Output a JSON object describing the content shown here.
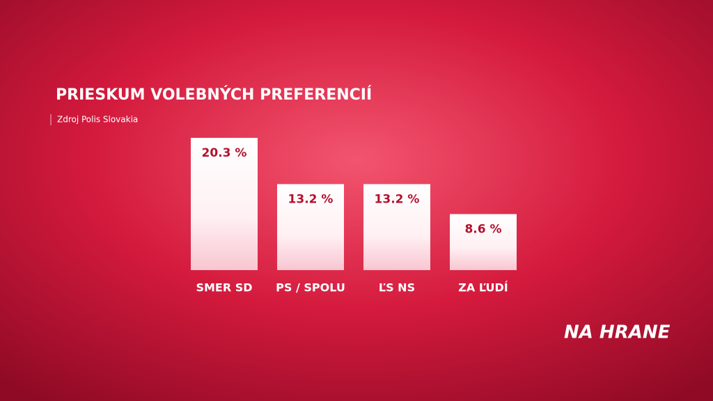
{
  "chart_data": {
    "type": "bar",
    "title": "PRIESKUM VOLEBNÝCH PREFERENCIÍ",
    "subtitle": "Zdroj Polis Slovakia",
    "categories": [
      "SMER SD",
      "PS / SPOLU",
      "ĽS NS",
      "ZA ĽUDÍ"
    ],
    "values": [
      20.3,
      13.2,
      13.2,
      8.6
    ],
    "value_labels": [
      "20.3 %",
      "13.2 %",
      "13.2 %",
      "8.6 %"
    ],
    "color": "#ffffff"
  },
  "logo": "NA HRANE"
}
